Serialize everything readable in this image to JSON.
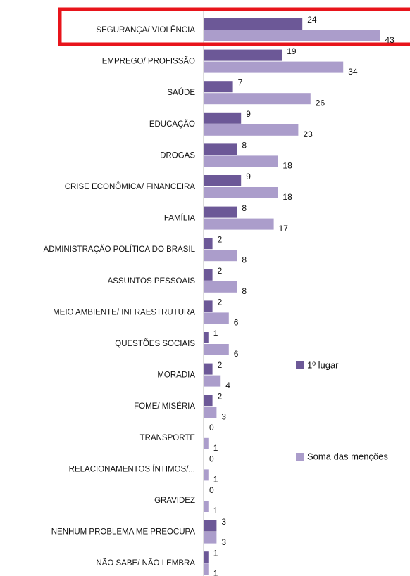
{
  "chart_data": {
    "type": "bar",
    "orientation": "horizontal",
    "categories": [
      "SEGURANÇA/ VIOLÊNCIA",
      "EMPREGO/ PROFISSÃO",
      "SAÚDE",
      "EDUCAÇÃO",
      "DROGAS",
      "CRISE ECONÔMICA/ FINANCEIRA",
      "FAMÍLIA",
      "ADMINISTRAÇÃO POLÍTICA DO BRASIL",
      "ASSUNTOS PESSOAIS",
      "MEIO AMBIENTE/ INFRAESTRUTURA",
      "QUESTÕES SOCIAIS",
      "MORADIA",
      "FOME/ MISÉRIA",
      "TRANSPORTE",
      "RELACIONAMENTOS ÍNTIMOS/...",
      "GRAVIDEZ",
      "NENHUM PROBLEMA ME PREOCUPA",
      "NÃO SABE/ NÃO LEMBRA"
    ],
    "series": [
      {
        "name": "1º lugar",
        "color": "#6c5897",
        "values": [
          24,
          19,
          7,
          9,
          8,
          9,
          8,
          2,
          2,
          2,
          1,
          2,
          2,
          0,
          0,
          0,
          3,
          1
        ]
      },
      {
        "name": "Soma das menções",
        "color": "#ab9dcb",
        "values": [
          43,
          34,
          26,
          23,
          18,
          18,
          17,
          8,
          8,
          6,
          6,
          4,
          3,
          1,
          1,
          1,
          3,
          1
        ]
      }
    ],
    "legend": "right"
  }
}
